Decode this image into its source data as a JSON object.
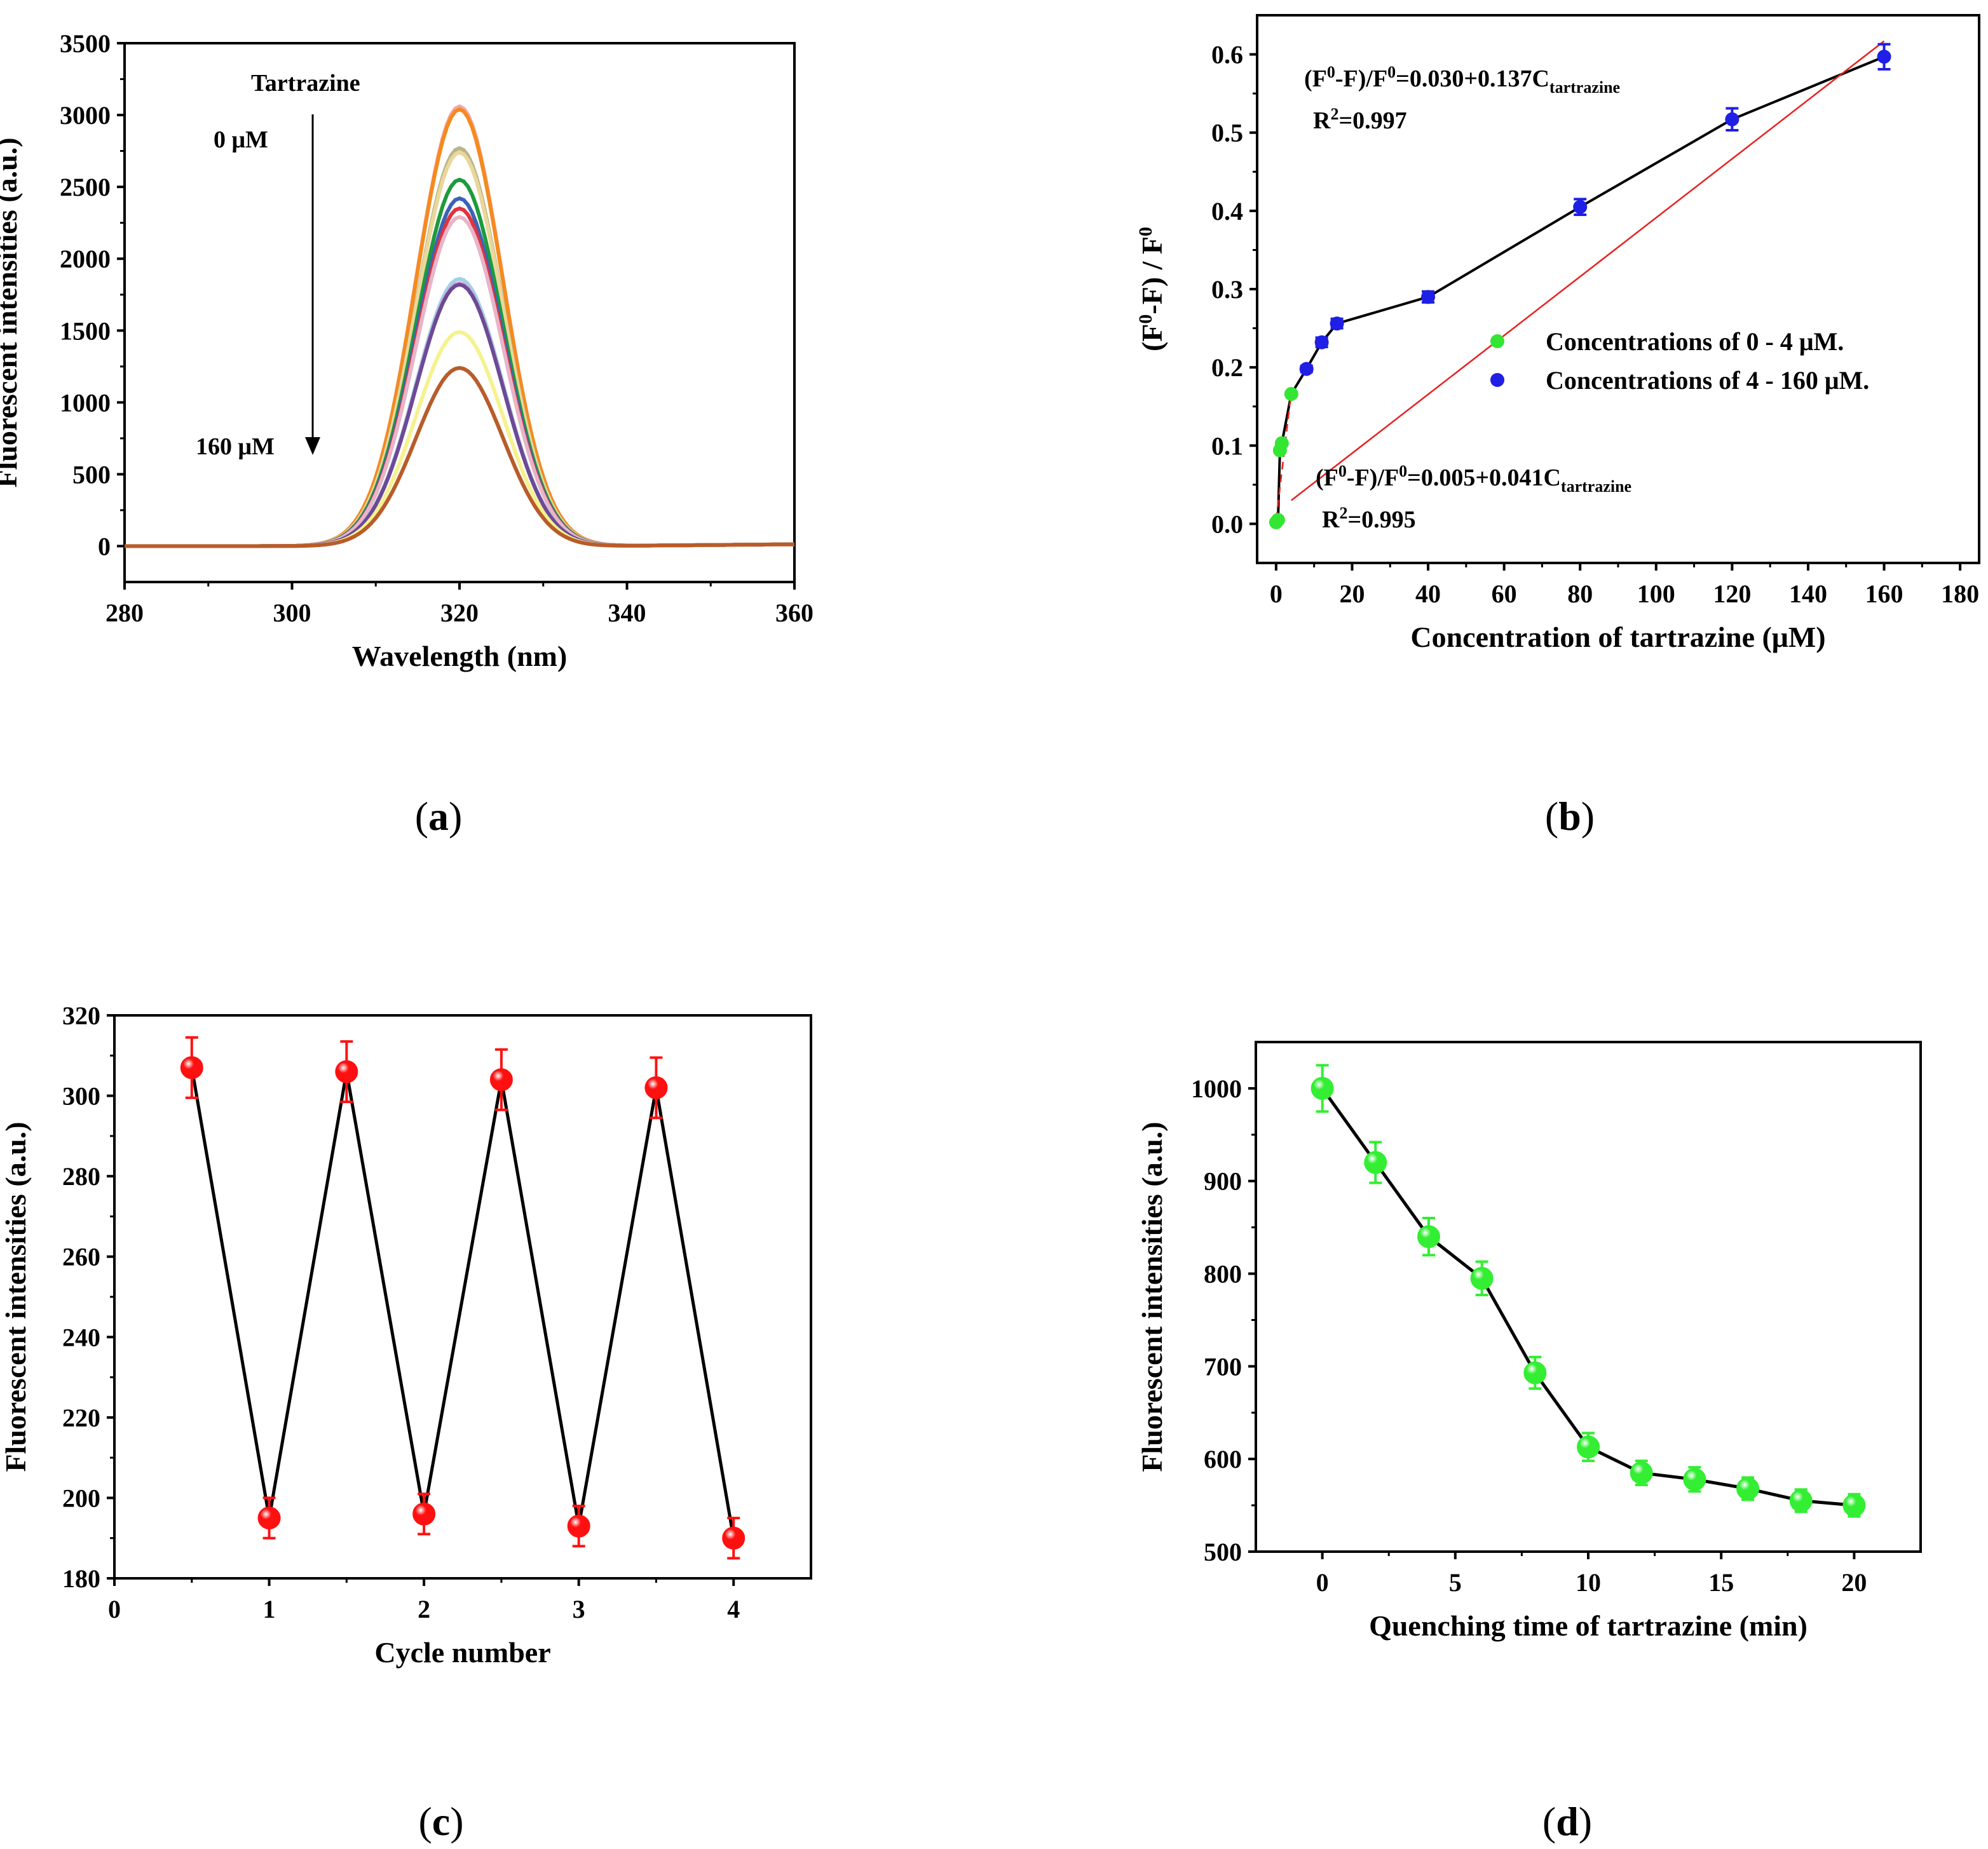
{
  "chart_data": [
    {
      "panel": "a",
      "type": "line",
      "xlabel": "Wavelength (nm)",
      "ylabel": "Fluorescent intensities (a.u.)",
      "xlim": [
        280,
        360
      ],
      "ylim": [
        -250,
        3500
      ],
      "xticks": [
        280,
        300,
        320,
        340,
        360
      ],
      "yticks": [
        0,
        500,
        1000,
        1500,
        2000,
        2500,
        3000,
        3500
      ],
      "grid": false,
      "annotations": [
        "Tartrazine",
        "0 μM",
        "160 μM"
      ],
      "peak_center_nm": 320,
      "series": [
        {
          "color": "#f7a6a8",
          "peak": 3060
        },
        {
          "color": "#f58a1e",
          "peak": 3040
        },
        {
          "color": "#b9b58a",
          "peak": 2770
        },
        {
          "color": "#ead79a",
          "peak": 2740
        },
        {
          "color": "#1e9a3c",
          "peak": 2550
        },
        {
          "color": "#3a63b8",
          "peak": 2420
        },
        {
          "color": "#e0343f",
          "peak": 2350
        },
        {
          "color": "#e8b4c8",
          "peak": 2290
        },
        {
          "color": "#9fd0ea",
          "peak": 1860
        },
        {
          "color": "#d9a3c9",
          "peak": 1830
        },
        {
          "color": "#6c4a96",
          "peak": 1820
        },
        {
          "color": "#f5f28f",
          "peak": 1490
        },
        {
          "color": "#b85c2a",
          "peak": 1240
        }
      ],
      "panel_label": "a"
    },
    {
      "panel": "b",
      "type": "scatter",
      "xlabel": "Concentration of tartrazine (μM)",
      "ylabel": "(F0-F) / F0",
      "xlim": [
        -5,
        185
      ],
      "ylim": [
        -0.05,
        0.65
      ],
      "xticks": [
        0,
        20,
        40,
        60,
        80,
        100,
        120,
        140,
        160,
        180
      ],
      "yticks": [
        0.0,
        0.1,
        0.2,
        0.3,
        0.4,
        0.5,
        0.6
      ],
      "grid": false,
      "legend_position": "right",
      "series": [
        {
          "name": "Concentrations of 0 - 4 μM.",
          "color": "#33e633",
          "x": [
            0,
            0.5,
            1,
            1.5,
            4
          ],
          "y": [
            0.002,
            0.005,
            0.094,
            0.103,
            0.166
          ]
        },
        {
          "name": "Concentrations of 4 - 160 μM.",
          "color": "#1f1fe6",
          "x": [
            8,
            12,
            16,
            40,
            80,
            120,
            160
          ],
          "y": [
            0.198,
            0.232,
            0.256,
            0.29,
            0.405,
            0.517,
            0.597
          ],
          "yerr": [
            0.004,
            0.006,
            0.006,
            0.007,
            0.01,
            0.014,
            0.016
          ]
        }
      ],
      "fit_lines": [
        {
          "x": [
            0,
            4
          ],
          "y": [
            0.005,
            0.169
          ],
          "style": "dashed"
        },
        {
          "x": [
            4,
            160
          ],
          "y": [
            0.03,
            0.617
          ],
          "style": "solid"
        }
      ],
      "equations": [
        {
          "lhs_open": "(F",
          "sup": "0",
          "mid": "-F)/F",
          "sup2": "0",
          "rhs": "=0.030+0.137C",
          "sub": "tartrazine",
          "r2_text": "R",
          "r2_sup": "2",
          "r2_value": "=0.997"
        },
        {
          "lhs_open": "(F",
          "sup": "0",
          "mid": "-F)/F",
          "sup2": "0",
          "rhs": "=0.005+0.041C",
          "sub": "tartrazine",
          "r2_text": "R",
          "r2_sup": "2",
          "r2_value": "=0.995"
        }
      ],
      "ylabel_parts": {
        "a": "(F",
        "b": "0",
        "c": "-F) / F",
        "d": "0"
      },
      "panel_label": "b"
    },
    {
      "panel": "c",
      "type": "line",
      "xlabel": "Cycle number",
      "ylabel": "Fluorescent intensities (a.u.)",
      "xlim": [
        0,
        4.5
      ],
      "ylim": [
        180,
        320
      ],
      "xticks": [
        0,
        1,
        2,
        3,
        4
      ],
      "yticks": [
        180,
        200,
        220,
        240,
        260,
        280,
        300,
        320
      ],
      "grid": false,
      "color": "#ff1010",
      "x": [
        0.5,
        1,
        1.5,
        2,
        2.5,
        3,
        3.5,
        4
      ],
      "y": [
        307,
        195,
        306,
        196,
        304,
        193,
        302,
        190
      ],
      "yerr": [
        7.5,
        5,
        7.5,
        5,
        7.5,
        5,
        7.5,
        5
      ],
      "panel_label": "c"
    },
    {
      "panel": "d",
      "type": "line",
      "xlabel": "Quenching time of tartrazine (min)",
      "ylabel": "Fluorescent intensities (a.u.)",
      "xlim": [
        -2.5,
        22.5
      ],
      "ylim": [
        500,
        1050
      ],
      "xticks": [
        0,
        5,
        10,
        15,
        20
      ],
      "yticks": [
        500,
        600,
        700,
        800,
        900,
        1000
      ],
      "grid": false,
      "color": "#33ee33",
      "x": [
        0,
        2,
        4,
        6,
        8,
        10,
        12,
        14,
        16,
        18,
        20
      ],
      "y": [
        1000,
        920,
        840,
        795,
        693,
        613,
        585,
        578,
        568,
        555,
        550
      ],
      "yerr": [
        25,
        22,
        20,
        18,
        17,
        15,
        13,
        13,
        12,
        12,
        12
      ],
      "panel_label": "d"
    }
  ]
}
